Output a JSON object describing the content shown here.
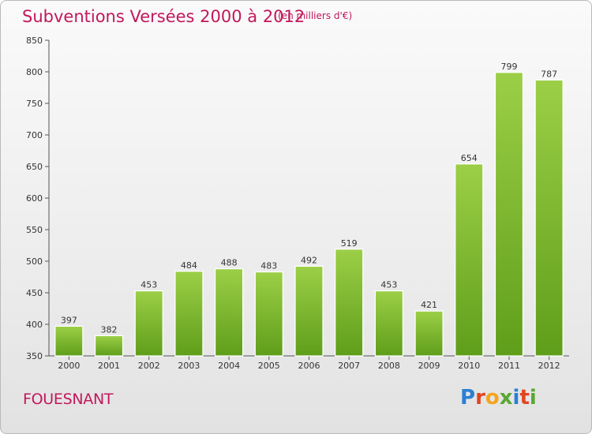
{
  "header": {
    "title": "Subventions Versées 2000 à 2012",
    "subtitle": "(en milliers d'€)"
  },
  "footer": {
    "commune": "FOUESNANT",
    "logo_letters": [
      "P",
      "r",
      "o",
      "x",
      "i",
      "t",
      "i"
    ],
    "logo_colors": [
      "#2b7fd4",
      "#e0451f",
      "#f4a51c",
      "#5aa832",
      "#2b7fd4",
      "#e0451f",
      "#5aa832"
    ]
  },
  "chart_data": {
    "type": "bar",
    "title": "Subventions Versées 2000 à 2012",
    "subtitle": "(en milliers d'€)",
    "categories": [
      "2000",
      "2001",
      "2002",
      "2003",
      "2004",
      "2005",
      "2006",
      "2007",
      "2008",
      "2009",
      "2010",
      "2011",
      "2012"
    ],
    "values": [
      397,
      382,
      453,
      484,
      488,
      483,
      492,
      519,
      453,
      421,
      654,
      799,
      787
    ],
    "ylim": [
      350,
      850
    ],
    "yticks": [
      350,
      400,
      450,
      500,
      550,
      600,
      650,
      700,
      750,
      800,
      850
    ],
    "grid": false,
    "bar_color_top": "#9ccf47",
    "bar_color_bottom": "#5f9e1a"
  }
}
